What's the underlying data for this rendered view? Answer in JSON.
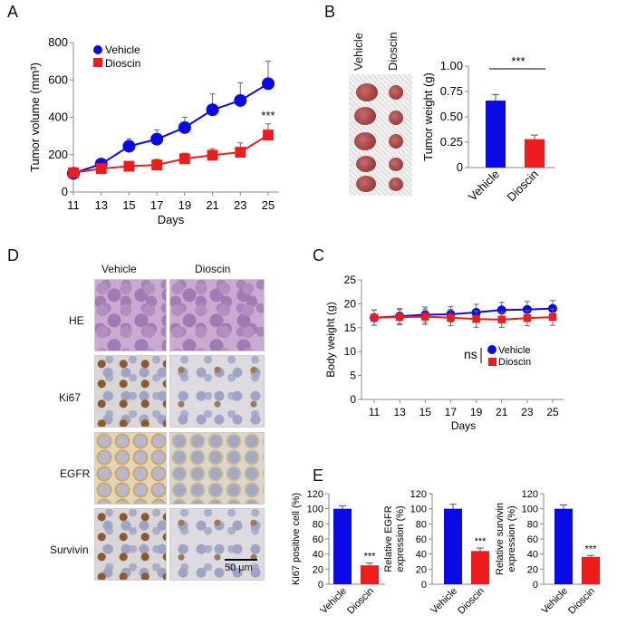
{
  "panels": {
    "a": "A",
    "b": "B",
    "c": "C",
    "d": "D",
    "e": "E"
  },
  "colors": {
    "vehicle": "#0a0ae6",
    "dioscin": "#ee1c1c"
  },
  "chart_data": [
    {
      "id": "A",
      "type": "line",
      "xlabel": "Days",
      "ylabel": "Tumor volume (mm³)",
      "ylim": [
        0,
        800
      ],
      "yticks": [
        0,
        200,
        400,
        600,
        800
      ],
      "x": [
        11,
        13,
        15,
        17,
        19,
        21,
        23,
        25
      ],
      "series": [
        {
          "name": "Vehicle",
          "values": [
            100,
            150,
            245,
            283,
            345,
            440,
            490,
            580
          ],
          "errors": [
            0,
            0,
            40,
            50,
            55,
            85,
            95,
            120
          ]
        },
        {
          "name": "Dioscin",
          "values": [
            103,
            125,
            138,
            145,
            178,
            197,
            213,
            305
          ],
          "errors": [
            0,
            0,
            0,
            30,
            30,
            35,
            50,
            60
          ]
        }
      ],
      "annotation": "***",
      "legend": "top-left"
    },
    {
      "id": "B",
      "type": "bar",
      "ylabel": "Tumor weight (g)",
      "ylim": [
        0,
        1
      ],
      "yticks": [
        "0",
        "0.25",
        "0.50",
        "0.75",
        "1.00"
      ],
      "categories": [
        "Vehicle",
        "Dioscin"
      ],
      "values": [
        0.66,
        0.28
      ],
      "errors": [
        0.06,
        0.04
      ],
      "annotation": "***"
    },
    {
      "id": "C",
      "type": "line",
      "xlabel": "Days",
      "ylabel": "Body weight (g)",
      "ylim": [
        0,
        25
      ],
      "yticks": [
        0,
        5,
        10,
        15,
        20,
        25
      ],
      "x": [
        11,
        13,
        15,
        17,
        19,
        21,
        23,
        25
      ],
      "series": [
        {
          "name": "Vehicle",
          "values": [
            17.1,
            17.4,
            17.7,
            17.8,
            18.2,
            18.7,
            18.8,
            19.0
          ],
          "errors": [
            1.6,
            1.6,
            1.6,
            1.6,
            1.7,
            1.6,
            1.7,
            1.7
          ]
        },
        {
          "name": "Dioscin",
          "values": [
            17.1,
            17.2,
            17.3,
            17.1,
            16.8,
            16.7,
            17.0,
            17.2
          ],
          "errors": [
            1.6,
            1.6,
            1.6,
            1.7,
            1.7,
            1.6,
            1.6,
            1.7
          ]
        }
      ],
      "annotation": "ns",
      "legend": "center-right"
    },
    {
      "id": "E1",
      "type": "bar",
      "ylabel": [
        "Ki67 positive cell (%)"
      ],
      "ylim": [
        0,
        120
      ],
      "yticks": [
        0,
        20,
        40,
        60,
        80,
        100,
        120
      ],
      "categories": [
        "Vehicle",
        "Dioscin"
      ],
      "values": [
        100,
        25
      ],
      "errors": [
        4,
        3
      ],
      "annotation": "***"
    },
    {
      "id": "E2",
      "type": "bar",
      "ylabel": [
        "Relative EGFR",
        "expression (%)"
      ],
      "ylim": [
        0,
        120
      ],
      "yticks": [
        0,
        20,
        40,
        60,
        80,
        100,
        120
      ],
      "categories": [
        "Vehicle",
        "Dioscin"
      ],
      "values": [
        100,
        44
      ],
      "errors": [
        6,
        4
      ],
      "annotation": "***"
    },
    {
      "id": "E3",
      "type": "bar",
      "ylabel": [
        "Relative survivin",
        "expression (%)"
      ],
      "ylim": [
        0,
        120
      ],
      "yticks": [
        0,
        20,
        40,
        60,
        80,
        100,
        120
      ],
      "categories": [
        "Vehicle",
        "Dioscin"
      ],
      "values": [
        100,
        36
      ],
      "errors": [
        5,
        2
      ],
      "annotation": "***"
    }
  ],
  "histology": {
    "columns": [
      "Vehicle",
      "Dioscin"
    ],
    "rows": [
      "HE",
      "Ki67",
      "EGFR",
      "Survivin"
    ],
    "scale_bar": "50 µm"
  },
  "tumor_photo": {
    "columns": [
      "Vehicle",
      "Dioscin"
    ]
  }
}
